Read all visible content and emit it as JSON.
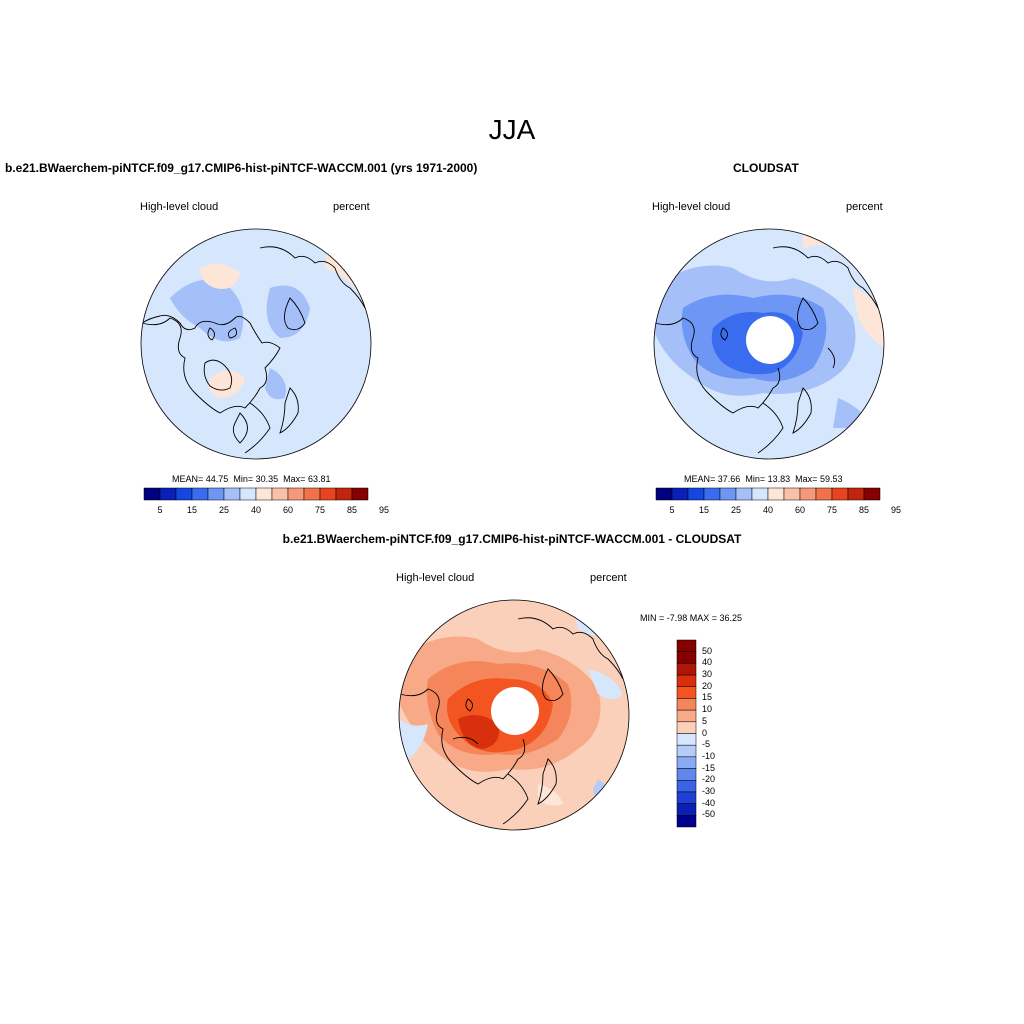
{
  "page": {
    "title": "JJA"
  },
  "colors": {
    "land_outline": "#000000",
    "mean_scale": [
      "#000080",
      "#0a1fb5",
      "#1446e0",
      "#3a6cf0",
      "#6e96f5",
      "#a5c0f8",
      "#d6e6fd",
      "#fde6d8",
      "#f9c2a8",
      "#f59a78",
      "#f2704a",
      "#e8451f",
      "#c0260f",
      "#850000"
    ],
    "diff_scale": [
      "#850000",
      "#b01606",
      "#d8300c",
      "#f25522",
      "#f5855a",
      "#f8aa88",
      "#fbd0bb",
      "#d6e6fd",
      "#b5ccf8",
      "#8aaaf3",
      "#5f87ee",
      "#3a63e6",
      "#1f3fd8",
      "#0a1fb5",
      "#000090"
    ]
  },
  "panels": {
    "left": {
      "title": "b.e21.BWaerchem-piNTCF.f09_g17.CMIP6-hist-piNTCF-WACCM.001 (yrs 1971-2000)",
      "variable": "High-level cloud",
      "units": "percent",
      "mean_label": "MEAN=",
      "mean": "44.75",
      "min_label": "Min=",
      "min": "30.35",
      "max_label": "Max=",
      "max": "63.81",
      "colorbar_labels": [
        "5",
        "15",
        "25",
        "40",
        "60",
        "75",
        "85",
        "95"
      ]
    },
    "right": {
      "title": "CLOUDSAT",
      "variable": "High-level cloud",
      "units": "percent",
      "mean_label": "MEAN=",
      "mean": "37.66",
      "min_label": "Min=",
      "min": "13.83",
      "max_label": "Max=",
      "max": "59.53",
      "colorbar_labels": [
        "5",
        "15",
        "25",
        "40",
        "60",
        "75",
        "85",
        "95"
      ]
    },
    "diff": {
      "title": "b.e21.BWaerchem-piNTCF.f09_g17.CMIP6-hist-piNTCF-WACCM.001 - CLOUDSAT",
      "variable": "High-level cloud",
      "units": "percent",
      "minmax_text": "MIN =  -7.98 MAX =  36.25",
      "colorbar_labels": [
        "50",
        "40",
        "30",
        "20",
        "15",
        "10",
        "5",
        "0",
        "-5",
        "-10",
        "-15",
        "-20",
        "-30",
        "-40",
        "-50"
      ]
    }
  }
}
